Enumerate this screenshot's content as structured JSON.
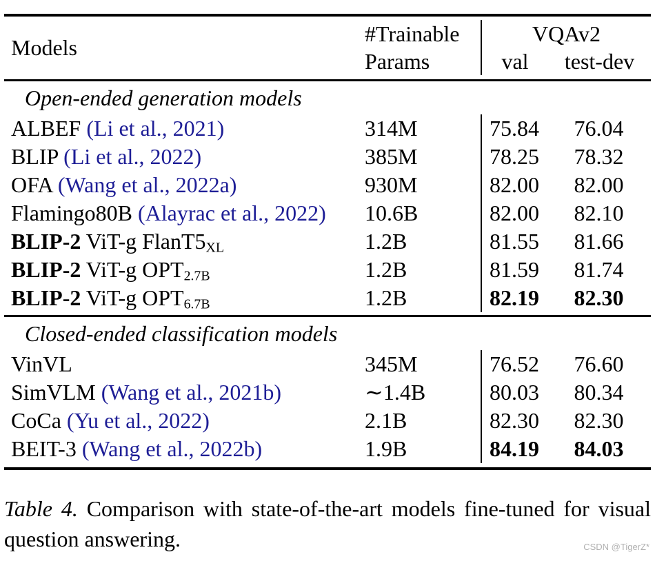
{
  "page": {
    "background": "#ffffff",
    "text_color": "#000000",
    "cite_color": "#1e1e96",
    "watermark": "CSDN @TigerZ*",
    "watermark_color": "#b0b0b0"
  },
  "table": {
    "header": {
      "models": "Models",
      "params_line1": "#Trainable",
      "params_line2": "Params",
      "group": "VQAv2",
      "sub_val": "val",
      "sub_testdev": "test-dev"
    },
    "sections": [
      {
        "title": "Open-ended generation models",
        "rows": [
          {
            "name": [
              {
                "t": "ALBEF "
              },
              {
                "t": "(Li et al., 2021)",
                "s": "cite"
              }
            ],
            "params": "314M",
            "val": "75.84",
            "testdev": "76.04",
            "val_bold": false,
            "testdev_bold": false
          },
          {
            "name": [
              {
                "t": "BLIP "
              },
              {
                "t": "(Li et al., 2022)",
                "s": "cite"
              }
            ],
            "params": "385M",
            "val": "78.25",
            "testdev": "78.32",
            "val_bold": false,
            "testdev_bold": false
          },
          {
            "name": [
              {
                "t": "OFA "
              },
              {
                "t": "(Wang et al., 2022a)",
                "s": "cite"
              }
            ],
            "params": "930M",
            "val": "82.00",
            "testdev": "82.00",
            "val_bold": false,
            "testdev_bold": false
          },
          {
            "name": [
              {
                "t": "Flamingo80B "
              },
              {
                "t": "(Alayrac et al., 2022)",
                "s": "cite"
              }
            ],
            "params": "10.6B",
            "val": "82.00",
            "testdev": "82.10",
            "val_bold": false,
            "testdev_bold": false
          },
          {
            "name": [
              {
                "t": "BLIP-2",
                "s": "b"
              },
              {
                "t": " ViT-g FlanT5"
              },
              {
                "t": "XL",
                "s": "sub"
              }
            ],
            "params": "1.2B",
            "val": "81.55",
            "testdev": "81.66",
            "val_bold": false,
            "testdev_bold": false
          },
          {
            "name": [
              {
                "t": "BLIP-2",
                "s": "b"
              },
              {
                "t": " ViT-g OPT"
              },
              {
                "t": "2.7B",
                "s": "sub"
              }
            ],
            "params": "1.2B",
            "val": "81.59",
            "testdev": "81.74",
            "val_bold": false,
            "testdev_bold": false
          },
          {
            "name": [
              {
                "t": "BLIP-2",
                "s": "b"
              },
              {
                "t": " ViT-g OPT"
              },
              {
                "t": "6.7B",
                "s": "sub"
              }
            ],
            "params": "1.2B",
            "val": "82.19",
            "testdev": "82.30",
            "val_bold": true,
            "testdev_bold": true
          }
        ]
      },
      {
        "title": "Closed-ended classification models",
        "rows": [
          {
            "name": [
              {
                "t": "VinVL"
              }
            ],
            "params": "345M",
            "val": "76.52",
            "testdev": "76.60",
            "val_bold": false,
            "testdev_bold": false
          },
          {
            "name": [
              {
                "t": "SimVLM "
              },
              {
                "t": "(Wang et al., 2021b)",
                "s": "cite"
              }
            ],
            "params": "∼1.4B",
            "val": "80.03",
            "testdev": "80.34",
            "val_bold": false,
            "testdev_bold": false
          },
          {
            "name": [
              {
                "t": "CoCa "
              },
              {
                "t": "(Yu et al., 2022)",
                "s": "cite"
              }
            ],
            "params": "2.1B",
            "val": "82.30",
            "testdev": "82.30",
            "val_bold": false,
            "testdev_bold": false
          },
          {
            "name": [
              {
                "t": "BEIT-3 "
              },
              {
                "t": "(Wang et al., 2022b)",
                "s": "cite"
              }
            ],
            "params": "1.9B",
            "val": "84.19",
            "testdev": "84.03",
            "val_bold": true,
            "testdev_bold": true
          }
        ]
      }
    ]
  },
  "caption": {
    "label": "Table 4.",
    "text": "Comparison with state-of-the-art models fine-tuned for visual question answering."
  }
}
